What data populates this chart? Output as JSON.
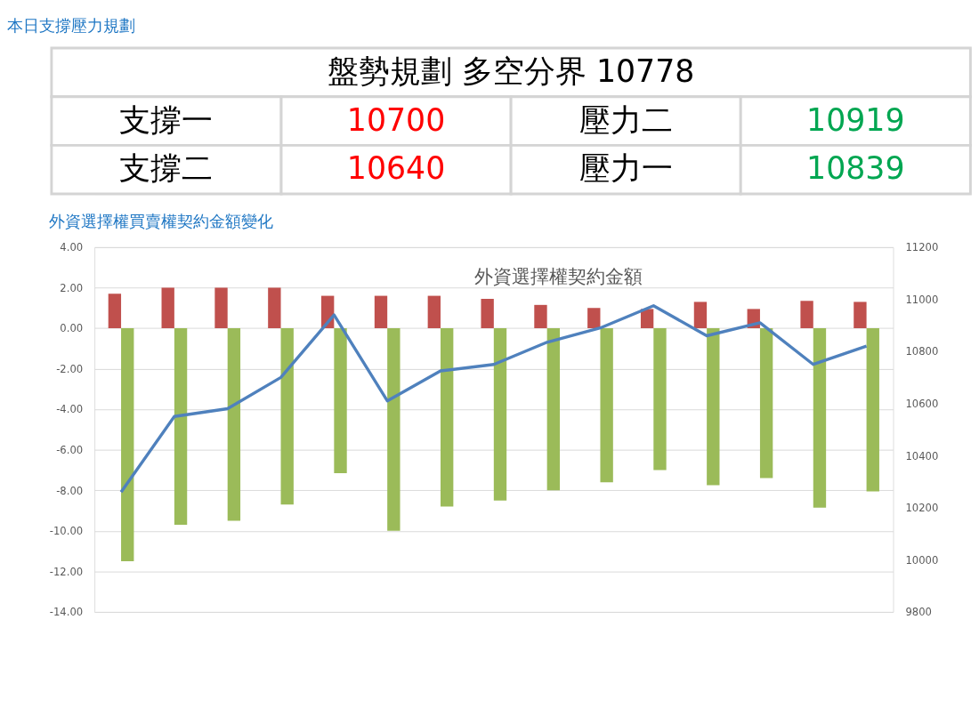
{
  "chart_data": [
    {
      "type": "other",
      "title": "本日支撐壓力規劃",
      "annotations": [
        "盤勢規劃 多空分界 10778",
        "支撐一",
        "10700",
        "壓力二",
        "10919",
        "支撐二",
        "10640",
        "壓力一",
        "10839"
      ],
      "colors": [
        "#000000",
        "#000000",
        "#ff0000",
        "#000000",
        "#00a651",
        "#000000",
        "#ff0000",
        "#000000",
        "#00a651"
      ]
    },
    {
      "type": "bar",
      "title": "外資選擇權買賣權契約金額變化",
      "subtitle": "外資選擇權契約金額",
      "categories": [
        null,
        null,
        null,
        null,
        null,
        null,
        null,
        null,
        null,
        null,
        null,
        null,
        null,
        null,
        null
      ],
      "series": [
        {
          "color": "#c0504d",
          "values": [
            1.7,
            2.0,
            2.0,
            2.0,
            1.6,
            1.6,
            1.6,
            1.45,
            1.15,
            1.0,
            0.95,
            1.3,
            0.95,
            1.35,
            1.3
          ]
        },
        {
          "color": "#9bbb59",
          "values": [
            -11.5,
            -9.7,
            -9.5,
            -8.7,
            -7.15,
            -10.0,
            -8.8,
            -8.5,
            -8.0,
            -7.6,
            -7.0,
            -7.75,
            -7.4,
            -8.85,
            -8.05
          ]
        },
        {
          "type": "line",
          "axis": "y2",
          "color": "#4f81bd",
          "values": [
            10260,
            10550,
            10580,
            10700,
            10940,
            10610,
            10725,
            10750,
            10835,
            10890,
            10975,
            10860,
            10910,
            10750,
            10820
          ]
        }
      ],
      "ylim": [
        -14,
        4
      ],
      "yticks": [
        {
          "value": -14,
          "label": "-14.00"
        },
        {
          "value": -12,
          "label": "-12.00"
        },
        {
          "value": -10,
          "label": "-10.00"
        },
        {
          "value": -8,
          "label": "-8.00"
        },
        {
          "value": -6,
          "label": "-6.00"
        },
        {
          "value": -4,
          "label": "-4.00"
        },
        {
          "value": -2,
          "label": "-2.00"
        },
        {
          "value": 0,
          "label": "0.00"
        },
        {
          "value": 2,
          "label": "2.00"
        },
        {
          "value": 4,
          "label": "4.00"
        }
      ],
      "y2lim": [
        9800,
        11200
      ],
      "y2ticks": [
        9800,
        10000,
        10200,
        10400,
        10600,
        10800,
        11000,
        11200
      ],
      "grid": "y"
    }
  ]
}
